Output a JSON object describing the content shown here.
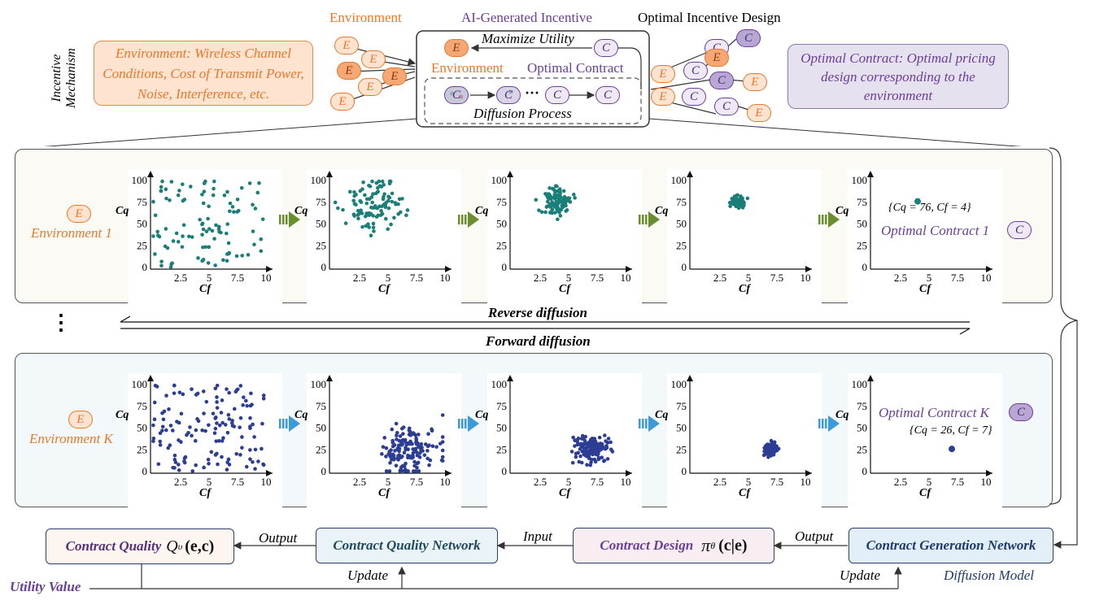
{
  "header": {
    "incentive_label": "Incentive",
    "mechanism_label": "Mechanism",
    "environment_title": "Environment",
    "ai_incentive_title": "AI-Generated Incentive",
    "optimal_design_title": "Optimal Incentive Design",
    "env_box_text": "Environment: Wireless Channel Conditions, Cost of Transmit Power, Noise, Interference, etc.",
    "contract_box_text": "Optimal Contract: Optimal pricing design corresponding to the environment",
    "maximize_utility": "Maximize Utility",
    "inner_environment": "Environment",
    "inner_optimal_contract": "Optimal Contract",
    "diffusion_process": "Diffusion Process",
    "ellipsis": "···",
    "node_e": "E",
    "node_c": "C"
  },
  "panels": {
    "env1_label": "Environment 1",
    "envk_label": "Environment K",
    "optimal1_label": "Optimal Contract 1",
    "optimalk_label": "Optimal Contract K",
    "optimal1_values": "{Cq = 76, Cf = 4}",
    "optimalk_values": "{Cq = 26, Cf = 7}",
    "vdots": "⋮",
    "reverse_diffusion": "Reverse diffusion",
    "forward_diffusion": "Forward diffusion",
    "xlabel": "Cf",
    "ylabel": "Cq",
    "xticks": [
      "2.5",
      "5",
      "7.5",
      "10"
    ],
    "yticks": [
      "0",
      "25",
      "50",
      "75",
      "100"
    ]
  },
  "chart_data": {
    "type": "scatter",
    "xlabel": "Cf",
    "ylabel": "Cq",
    "xlim": [
      0,
      10
    ],
    "ylim": [
      0,
      100
    ],
    "series": [
      {
        "name": "Environment 1 step 1",
        "points": "uniform noise over Cf 0-10, Cq 0-100"
      },
      {
        "name": "Environment 1 step 5",
        "values": [
          [
            4,
            76
          ]
        ]
      },
      {
        "name": "Environment K step 1",
        "points": "uniform noise over Cf 0-10, Cq 0-100"
      },
      {
        "name": "Environment K step 5",
        "values": [
          [
            7,
            26
          ]
        ]
      }
    ]
  },
  "bottom": {
    "contract_quality": "Contract Quality",
    "contract_quality_formula": "Q",
    "contract_quality_sub": "υ",
    "contract_quality_args": "(e,c)",
    "contract_quality_network": "Contract Quality Network",
    "contract_design": "Contract Design",
    "contract_design_formula": "π",
    "contract_design_sub": "θ",
    "contract_design_args": "(c|e)",
    "contract_generation_network": "Contract Generation Network",
    "output1": "Output",
    "input": "Input",
    "output2": "Output",
    "update1": "Update",
    "update2": "Update",
    "utility_value": "Utility Value",
    "diffusion_model": "Diffusion Model"
  },
  "colors": {
    "teal": "#1a7f78",
    "navy": "#2c3e94",
    "orange": "#e8782a",
    "purple": "#6a3d9a",
    "green_arrow": "#6a8e2e",
    "blue_arrow": "#3d9ad8"
  }
}
